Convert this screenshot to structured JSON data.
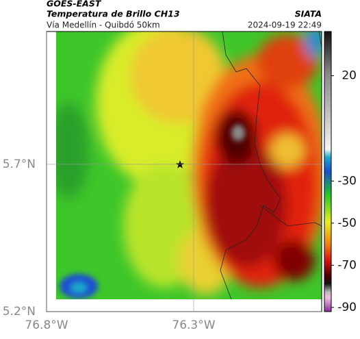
{
  "header": {
    "source": "GOES-EAST",
    "title": "Temperatura de Brillo CH13",
    "subtitle": "Vía Medellín - Quibdó 50km",
    "org": "SIATA",
    "datetime": "2024-09-19 22:49"
  },
  "map": {
    "xlim": [
      -76.8,
      -75.865
    ],
    "ylim": [
      5.2,
      6.151
    ],
    "xticks": [
      {
        "value": -76.8,
        "label": "76.8°W"
      },
      {
        "value": -76.3,
        "label": "76.3°W"
      }
    ],
    "yticks": [
      {
        "value": 5.2,
        "label": "5.2°N"
      },
      {
        "value": 5.7,
        "label": "5.7°N"
      }
    ],
    "grid": true
  },
  "colorbar": {
    "lim": [
      -92,
      41
    ],
    "ticks": [
      20,
      -30,
      -50,
      -70,
      -90
    ]
  }
}
